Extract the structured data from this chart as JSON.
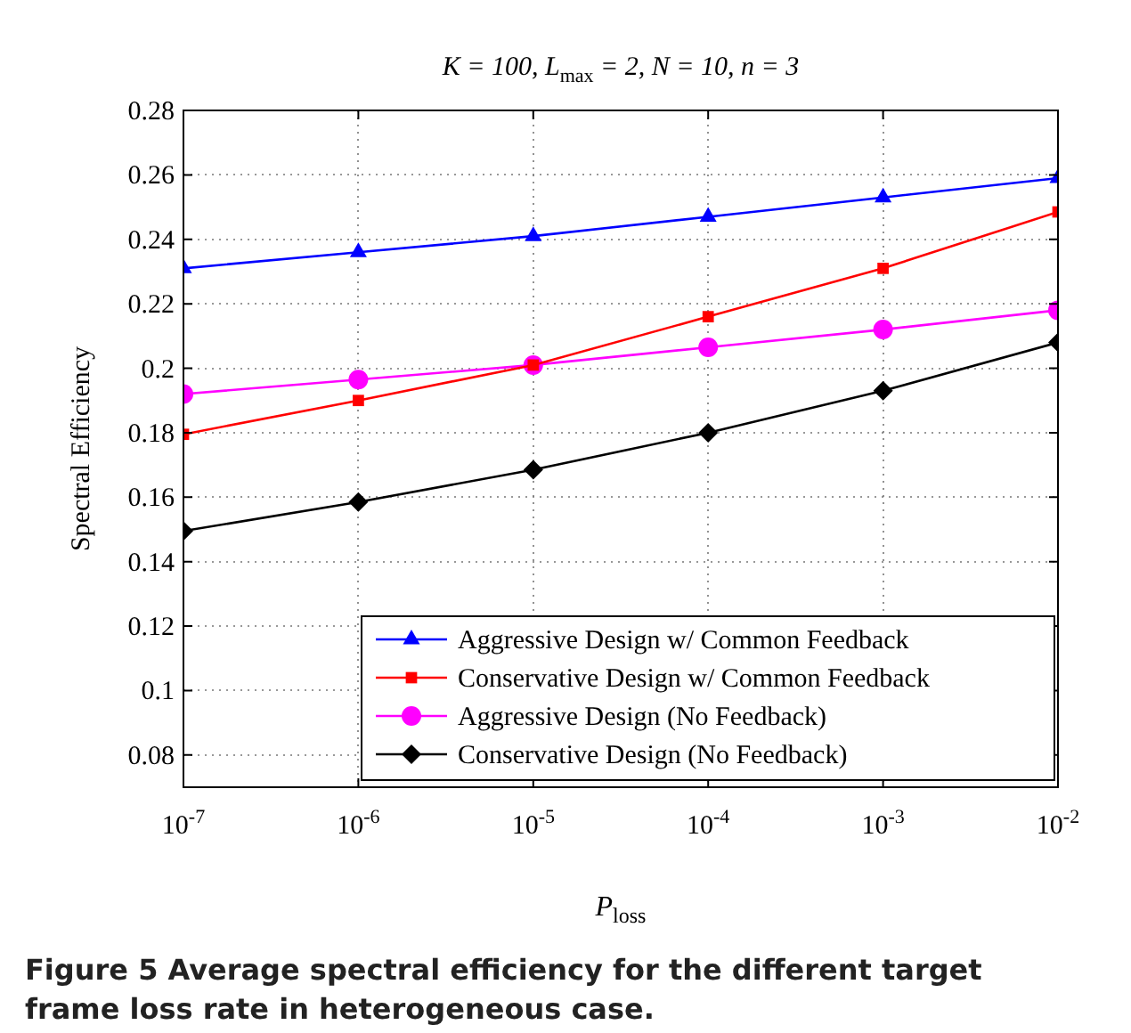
{
  "chart_data": {
    "type": "line",
    "title": "K = 100, L$_{max}$ = 2, N = 10, n = 3",
    "xlabel": "P$_{loss}$",
    "ylabel": "Spectral Efficiency",
    "x": [
      1e-07,
      1e-06,
      1e-05,
      0.0001,
      0.001,
      0.01
    ],
    "series": [
      {
        "name": "Aggressive Design w/ Common Feedback",
        "color": "#0000ff",
        "marker": "triangle",
        "values": [
          0.231,
          0.236,
          0.241,
          0.247,
          0.253,
          0.259
        ]
      },
      {
        "name": "Conservative Design w/ Common Feedback",
        "color": "#ff0000",
        "marker": "square",
        "values": [
          0.1795,
          0.19,
          0.201,
          0.216,
          0.231,
          0.2485
        ]
      },
      {
        "name": "Aggressive Design (No Feedback)",
        "color": "#ff00ff",
        "marker": "circle",
        "values": [
          0.192,
          0.1965,
          0.201,
          0.2065,
          0.212,
          0.218
        ]
      },
      {
        "name": "Conservative Design (No Feedback)",
        "color": "#000000",
        "marker": "diamond",
        "values": [
          0.1495,
          0.1585,
          0.1685,
          0.18,
          0.193,
          0.208
        ]
      }
    ],
    "log": "x",
    "xlim": [
      1e-07,
      0.01
    ],
    "xticks": [
      {
        "value": 1e-07,
        "label": "10$^{-7}$"
      },
      {
        "value": 1e-06,
        "label": "10$^{-6}$"
      },
      {
        "value": 1e-05,
        "label": "10$^{-5}$"
      },
      {
        "value": 0.0001,
        "label": "10$^{-4}$"
      },
      {
        "value": 0.001,
        "label": "10$^{-3}$"
      },
      {
        "value": 0.01,
        "label": "10$^{-2}$"
      }
    ],
    "ylim": [
      0.07,
      0.28
    ],
    "yticks": [
      0.08,
      0.1,
      0.12,
      0.14,
      0.16,
      0.18,
      0.2,
      0.22,
      0.24,
      0.26,
      0.28
    ],
    "grid": true,
    "legend": "bottom right",
    "line_style": "solid",
    "annotations": [
      "Figure 5 Average spectral efficiency for the different target frame loss rate in heterogeneous case."
    ]
  }
}
